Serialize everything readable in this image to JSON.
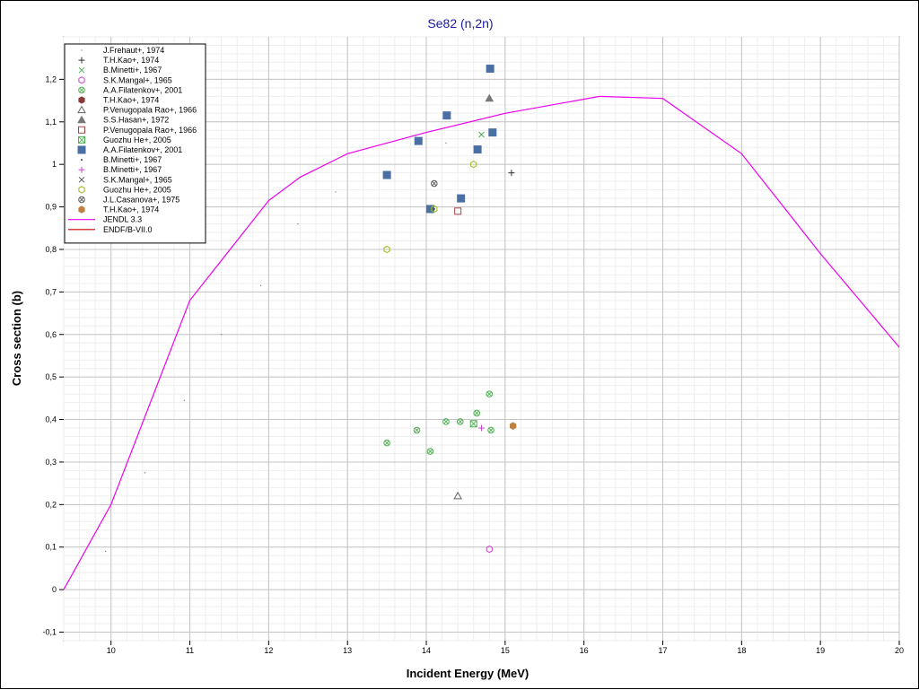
{
  "chart_data": {
    "type": "scatter",
    "title": "Se82 (n,2n)",
    "xlabel": "Incident Energy (MeV)",
    "ylabel": "Cross section (b)",
    "xlim": [
      9.4,
      20
    ],
    "ylim": [
      -0.12,
      1.3
    ],
    "x_ticks": [
      {
        "value": 10,
        "label": "10"
      },
      {
        "value": 11,
        "label": "11"
      },
      {
        "value": 12,
        "label": "12"
      },
      {
        "value": 13,
        "label": "13"
      },
      {
        "value": 14,
        "label": "14"
      },
      {
        "value": 15,
        "label": "15"
      },
      {
        "value": 16,
        "label": "16"
      },
      {
        "value": 17,
        "label": "17"
      },
      {
        "value": 18,
        "label": "18"
      },
      {
        "value": 19,
        "label": "19"
      },
      {
        "value": 20,
        "label": "20"
      }
    ],
    "y_ticks": [
      {
        "value": -0.1,
        "label": "-0,1"
      },
      {
        "value": 0,
        "label": "0"
      },
      {
        "value": 0.1,
        "label": "0,1"
      },
      {
        "value": 0.2,
        "label": "0,2"
      },
      {
        "value": 0.3,
        "label": "0,3"
      },
      {
        "value": 0.4,
        "label": "0,4"
      },
      {
        "value": 0.5,
        "label": "0,5"
      },
      {
        "value": 0.6,
        "label": "0,6"
      },
      {
        "value": 0.7,
        "label": "0,7"
      },
      {
        "value": 0.8,
        "label": "0,8"
      },
      {
        "value": 0.9,
        "label": "0,9"
      },
      {
        "value": 1.0,
        "label": "1"
      },
      {
        "value": 1.1,
        "label": "1,1"
      },
      {
        "value": 1.2,
        "label": "1,2"
      }
    ],
    "grid": true,
    "legend_position": "top-left",
    "series": [
      {
        "name": "J.Frehaut+, 1974",
        "marker": "dot",
        "color": "#777777",
        "points": [
          [
            9.93,
            0.09
          ],
          [
            10.43,
            0.275
          ],
          [
            10.93,
            0.445
          ],
          [
            11.4,
            0.6
          ],
          [
            11.9,
            0.715
          ],
          [
            12.37,
            0.86
          ],
          [
            12.85,
            0.935
          ],
          [
            14.25,
            1.05
          ]
        ]
      },
      {
        "name": "T.H.Kao+, 1974",
        "marker": "plus",
        "color": "#333333",
        "points": [
          [
            15.08,
            0.98
          ]
        ]
      },
      {
        "name": "B.Minetti+, 1967",
        "marker": "x",
        "color": "#4caf50",
        "points": [
          [
            14.7,
            1.07
          ]
        ]
      },
      {
        "name": "S.K.Mangal+, 1965",
        "marker": "hex-open",
        "color": "#cc44cc",
        "points": [
          [
            14.8,
            0.095
          ]
        ]
      },
      {
        "name": "A.A.Filatenkov+, 2001",
        "marker": "circle-x",
        "color": "#4caf50",
        "points": [
          [
            13.5,
            0.345
          ],
          [
            13.88,
            0.375
          ],
          [
            14.05,
            0.325
          ],
          [
            14.25,
            0.395
          ],
          [
            14.43,
            0.395
          ],
          [
            14.64,
            0.415
          ],
          [
            14.82,
            0.375
          ],
          [
            14.8,
            0.46
          ]
        ]
      },
      {
        "name": "T.H.Kao+, 1974",
        "marker": "hex-filled",
        "color": "#8b3a3a",
        "points": [
          [
            15.1,
            0.385
          ]
        ]
      },
      {
        "name": "P.Venugopala Rao+, 1966",
        "marker": "triangle-open",
        "color": "#666666",
        "points": [
          [
            14.4,
            0.22
          ]
        ]
      },
      {
        "name": "S.S.Hasan+, 1972",
        "marker": "triangle-filled",
        "color": "#777777",
        "points": [
          [
            14.8,
            1.155
          ]
        ]
      },
      {
        "name": "P.Venugopala Rao+, 1966",
        "marker": "square-open",
        "color": "#aa4444",
        "points": [
          [
            14.4,
            0.89
          ]
        ]
      },
      {
        "name": "Guozhu He+, 2005",
        "marker": "square-x",
        "color": "#4caf50",
        "points": [
          [
            14.6,
            0.39
          ]
        ]
      },
      {
        "name": "A.A.Filatenkov+, 2001",
        "marker": "square-filled",
        "color": "#4a6fa5",
        "points": [
          [
            13.5,
            0.975
          ],
          [
            13.9,
            1.055
          ],
          [
            14.05,
            0.895
          ],
          [
            14.26,
            1.115
          ],
          [
            14.44,
            0.92
          ],
          [
            14.65,
            1.035
          ],
          [
            14.81,
            1.225
          ],
          [
            14.84,
            1.075
          ]
        ]
      },
      {
        "name": "B.Minetti+, 1967",
        "marker": "dot-small",
        "color": "#333333",
        "points": [
          [
            14.1,
            0.895
          ]
        ]
      },
      {
        "name": "B.Minetti+, 1967",
        "marker": "plus",
        "color": "#cc44cc",
        "points": [
          [
            14.7,
            0.38
          ]
        ]
      },
      {
        "name": "S.K.Mangal+, 1965",
        "marker": "x",
        "color": "#555555",
        "points": []
      },
      {
        "name": "Guozhu He+, 2005",
        "marker": "hex-open",
        "color": "#a0b820",
        "points": [
          [
            13.5,
            0.8
          ],
          [
            14.6,
            1.0
          ],
          [
            14.1,
            0.895
          ]
        ]
      },
      {
        "name": "J.L.Casanova+, 1975",
        "marker": "circle-x-dark",
        "color": "#555555",
        "points": [
          [
            14.1,
            0.955
          ]
        ]
      },
      {
        "name": "T.H.Kao+, 1974",
        "marker": "hex-filled",
        "color": "#c08040",
        "points": [
          [
            15.1,
            0.385
          ]
        ]
      }
    ],
    "lines": [
      {
        "name": "JENDL 3.3",
        "color": "#ee00ee",
        "points": [
          [
            9.4,
            0.0
          ],
          [
            10.0,
            0.2
          ],
          [
            11.0,
            0.68
          ],
          [
            12.0,
            0.915
          ],
          [
            12.4,
            0.97
          ],
          [
            13.0,
            1.025
          ],
          [
            14.0,
            1.075
          ],
          [
            15.0,
            1.12
          ],
          [
            16.2,
            1.16
          ],
          [
            17.0,
            1.155
          ],
          [
            18.0,
            1.025
          ],
          [
            19.0,
            0.79
          ],
          [
            20.0,
            0.57
          ]
        ]
      },
      {
        "name": "ENDF/B-VII.0",
        "color": "#cc0000",
        "points": []
      }
    ]
  }
}
